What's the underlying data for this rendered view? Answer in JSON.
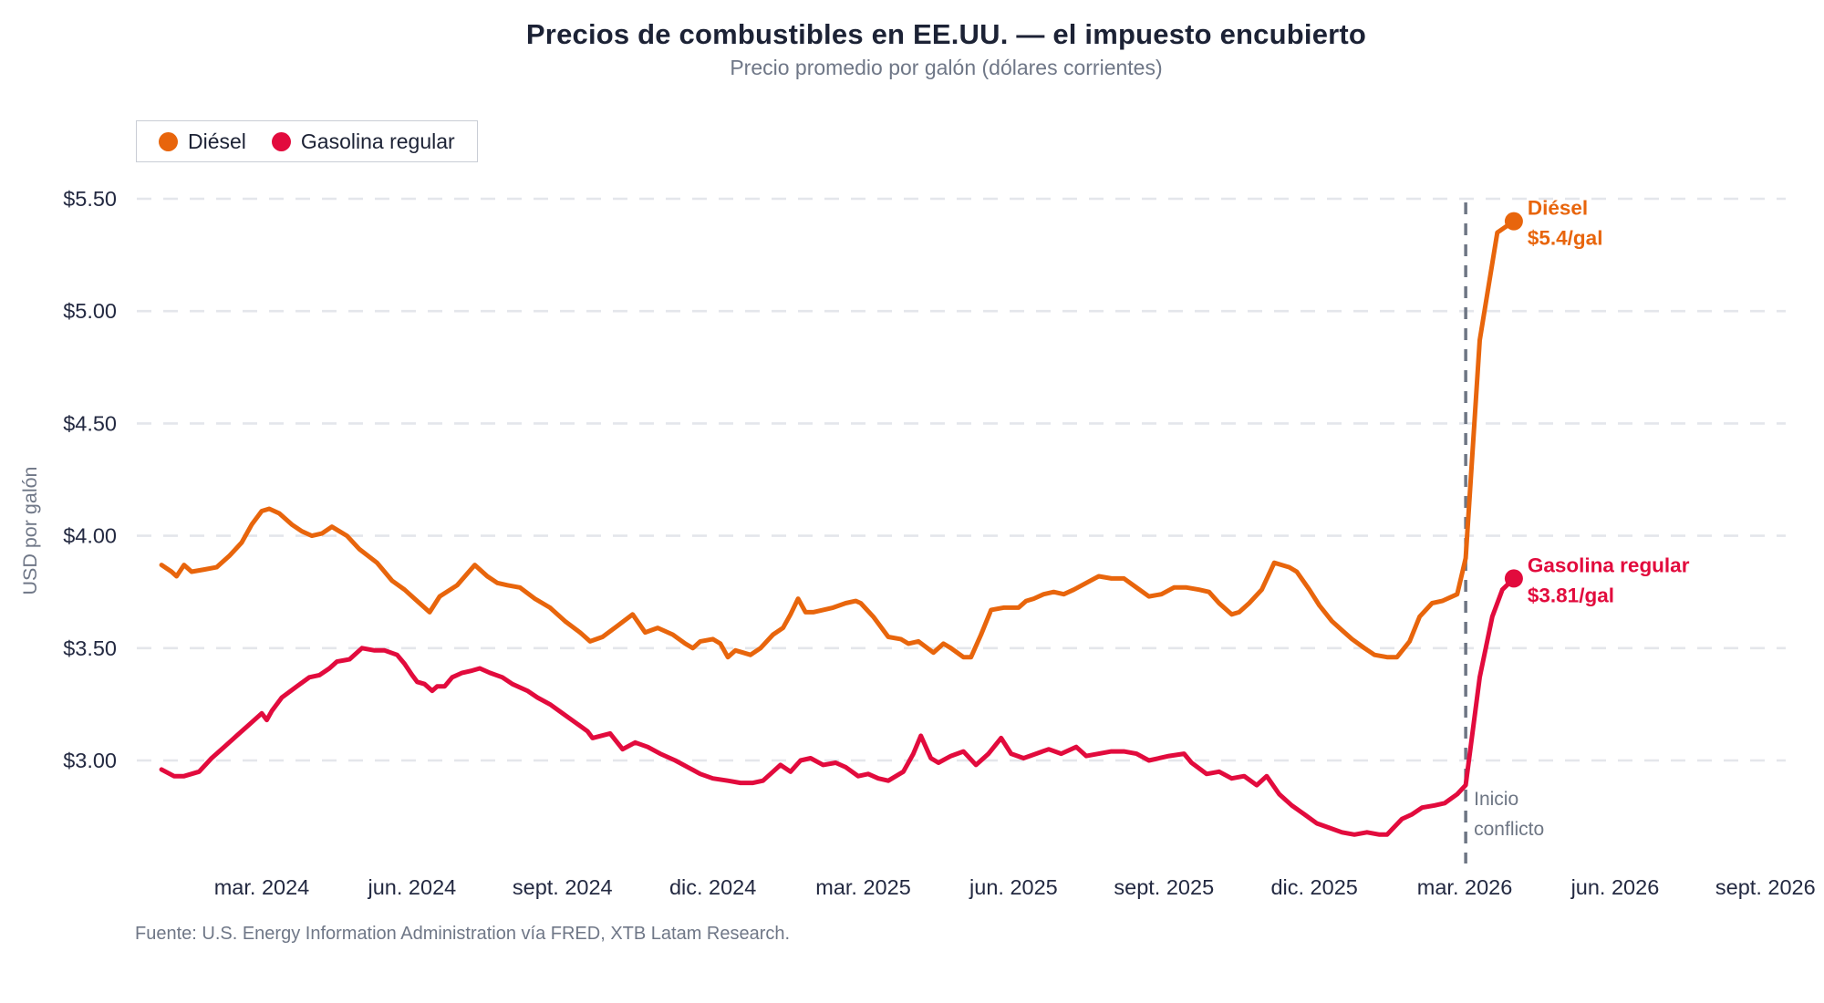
{
  "header": {
    "title": "Precios de combustibles en EE.UU. — el impuesto encubierto",
    "subtitle": "Precio promedio por galón (dólares corrientes)"
  },
  "footer": {
    "source": "Fuente: U.S. Energy Information Administration vía FRED, XTB Latam Research."
  },
  "colors": {
    "diesel": "#e8650c",
    "gasoline": "#e20b3d",
    "dark_text": "#232941",
    "muted_text": "#6f7787",
    "gridline": "#e4e6eb",
    "event_line": "#6e7684",
    "background": "#ffffff"
  },
  "chart_data": {
    "type": "line",
    "title": "Precios de combustibles en EE.UU. — el impuesto encubierto",
    "subtitle": "Precio promedio por galón (dólares corrientes)",
    "xlabel": "",
    "ylabel": "USD por galón",
    "x_unit": "months since January 2024 (m=0 is ene. 2024)",
    "xlim": [
      -1.1,
      32.45
    ],
    "ylim": [
      2.6,
      5.73
    ],
    "grid": "horizontal dashed",
    "legend_position": "top-left",
    "y_ticks": [
      {
        "v": 5.5,
        "label": "$5.50"
      },
      {
        "v": 5.0,
        "label": "$5.00"
      },
      {
        "v": 4.5,
        "label": "$4.50"
      },
      {
        "v": 4.0,
        "label": "$4.00"
      },
      {
        "v": 3.5,
        "label": "$3.50"
      },
      {
        "v": 3.0,
        "label": "$3.00"
      }
    ],
    "x_ticks": [
      {
        "m": 2,
        "label": "mar. 2024"
      },
      {
        "m": 5,
        "label": "jun. 2024"
      },
      {
        "m": 8,
        "label": "sept. 2024"
      },
      {
        "m": 11,
        "label": "dic. 2024"
      },
      {
        "m": 14,
        "label": "mar. 2025"
      },
      {
        "m": 17,
        "label": "jun. 2025"
      },
      {
        "m": 20,
        "label": "sept. 2025"
      },
      {
        "m": 23,
        "label": "dic. 2025"
      },
      {
        "m": 26,
        "label": "mar. 2026"
      },
      {
        "m": 29,
        "label": "jun. 2026"
      },
      {
        "m": 32,
        "label": "sept. 2026"
      }
    ],
    "event_line": {
      "m": 26.02,
      "style": "dashed",
      "color": "#6e7684",
      "label_lines": [
        "Inicio",
        "conflicto"
      ]
    },
    "series": [
      {
        "name": "Diésel",
        "color": "#e8650c",
        "end_value": 5.4,
        "end_annotation": {
          "lines": [
            "Diésel",
            "$5.4/gal"
          ]
        },
        "points": [
          [
            0.0,
            3.87
          ],
          [
            0.2,
            3.84
          ],
          [
            0.3,
            3.82
          ],
          [
            0.45,
            3.87
          ],
          [
            0.6,
            3.84
          ],
          [
            0.85,
            3.85
          ],
          [
            1.1,
            3.86
          ],
          [
            1.35,
            3.91
          ],
          [
            1.6,
            3.97
          ],
          [
            1.8,
            4.05
          ],
          [
            2.0,
            4.11
          ],
          [
            2.15,
            4.12
          ],
          [
            2.35,
            4.1
          ],
          [
            2.6,
            4.05
          ],
          [
            2.8,
            4.02
          ],
          [
            3.0,
            4.0
          ],
          [
            3.2,
            4.01
          ],
          [
            3.4,
            4.04
          ],
          [
            3.55,
            4.02
          ],
          [
            3.7,
            4.0
          ],
          [
            3.95,
            3.94
          ],
          [
            4.3,
            3.88
          ],
          [
            4.6,
            3.8
          ],
          [
            4.85,
            3.76
          ],
          [
            5.05,
            3.72
          ],
          [
            5.35,
            3.66
          ],
          [
            5.55,
            3.73
          ],
          [
            5.9,
            3.78
          ],
          [
            6.25,
            3.87
          ],
          [
            6.5,
            3.82
          ],
          [
            6.7,
            3.79
          ],
          [
            6.9,
            3.78
          ],
          [
            7.15,
            3.77
          ],
          [
            7.45,
            3.72
          ],
          [
            7.75,
            3.68
          ],
          [
            8.05,
            3.62
          ],
          [
            8.35,
            3.57
          ],
          [
            8.55,
            3.53
          ],
          [
            8.8,
            3.55
          ],
          [
            9.1,
            3.6
          ],
          [
            9.4,
            3.65
          ],
          [
            9.65,
            3.57
          ],
          [
            9.9,
            3.59
          ],
          [
            10.2,
            3.56
          ],
          [
            10.45,
            3.52
          ],
          [
            10.6,
            3.5
          ],
          [
            10.75,
            3.53
          ],
          [
            11.0,
            3.54
          ],
          [
            11.15,
            3.52
          ],
          [
            11.3,
            3.46
          ],
          [
            11.45,
            3.49
          ],
          [
            11.6,
            3.48
          ],
          [
            11.75,
            3.47
          ],
          [
            11.95,
            3.5
          ],
          [
            12.2,
            3.56
          ],
          [
            12.4,
            3.59
          ],
          [
            12.55,
            3.65
          ],
          [
            12.7,
            3.72
          ],
          [
            12.85,
            3.66
          ],
          [
            13.0,
            3.66
          ],
          [
            13.2,
            3.67
          ],
          [
            13.4,
            3.68
          ],
          [
            13.65,
            3.7
          ],
          [
            13.85,
            3.71
          ],
          [
            13.95,
            3.7
          ],
          [
            14.2,
            3.64
          ],
          [
            14.5,
            3.55
          ],
          [
            14.75,
            3.54
          ],
          [
            14.9,
            3.52
          ],
          [
            15.1,
            3.53
          ],
          [
            15.4,
            3.48
          ],
          [
            15.6,
            3.52
          ],
          [
            15.75,
            3.5
          ],
          [
            16.0,
            3.46
          ],
          [
            16.15,
            3.46
          ],
          [
            16.35,
            3.56
          ],
          [
            16.55,
            3.67
          ],
          [
            16.8,
            3.68
          ],
          [
            17.1,
            3.68
          ],
          [
            17.25,
            3.71
          ],
          [
            17.4,
            3.72
          ],
          [
            17.6,
            3.74
          ],
          [
            17.8,
            3.75
          ],
          [
            18.0,
            3.74
          ],
          [
            18.2,
            3.76
          ],
          [
            18.45,
            3.79
          ],
          [
            18.7,
            3.82
          ],
          [
            18.95,
            3.81
          ],
          [
            19.2,
            3.81
          ],
          [
            19.45,
            3.77
          ],
          [
            19.7,
            3.73
          ],
          [
            19.95,
            3.74
          ],
          [
            20.2,
            3.77
          ],
          [
            20.45,
            3.77
          ],
          [
            20.7,
            3.76
          ],
          [
            20.9,
            3.75
          ],
          [
            21.1,
            3.7
          ],
          [
            21.35,
            3.65
          ],
          [
            21.5,
            3.66
          ],
          [
            21.7,
            3.7
          ],
          [
            21.95,
            3.76
          ],
          [
            22.2,
            3.88
          ],
          [
            22.35,
            3.87
          ],
          [
            22.5,
            3.86
          ],
          [
            22.65,
            3.84
          ],
          [
            22.9,
            3.76
          ],
          [
            23.1,
            3.69
          ],
          [
            23.35,
            3.62
          ],
          [
            23.55,
            3.58
          ],
          [
            23.75,
            3.54
          ],
          [
            24.0,
            3.5
          ],
          [
            24.2,
            3.47
          ],
          [
            24.45,
            3.46
          ],
          [
            24.65,
            3.46
          ],
          [
            24.9,
            3.53
          ],
          [
            25.1,
            3.64
          ],
          [
            25.35,
            3.7
          ],
          [
            25.55,
            3.71
          ],
          [
            25.85,
            3.74
          ],
          [
            26.02,
            3.9
          ],
          [
            26.3,
            4.87
          ],
          [
            26.65,
            5.35
          ],
          [
            26.98,
            5.4
          ]
        ]
      },
      {
        "name": "Gasolina regular",
        "color": "#e20b3d",
        "end_value": 3.81,
        "end_annotation": {
          "lines": [
            "Gasolina regular",
            "$3.81/gal"
          ]
        },
        "points": [
          [
            0.0,
            2.96
          ],
          [
            0.25,
            2.93
          ],
          [
            0.45,
            2.93
          ],
          [
            0.75,
            2.95
          ],
          [
            1.0,
            3.01
          ],
          [
            1.25,
            3.06
          ],
          [
            1.5,
            3.11
          ],
          [
            1.75,
            3.16
          ],
          [
            2.0,
            3.21
          ],
          [
            2.1,
            3.18
          ],
          [
            2.2,
            3.22
          ],
          [
            2.4,
            3.28
          ],
          [
            2.7,
            3.33
          ],
          [
            2.95,
            3.37
          ],
          [
            3.15,
            3.38
          ],
          [
            3.35,
            3.41
          ],
          [
            3.5,
            3.44
          ],
          [
            3.75,
            3.45
          ],
          [
            4.0,
            3.5
          ],
          [
            4.25,
            3.49
          ],
          [
            4.45,
            3.49
          ],
          [
            4.7,
            3.47
          ],
          [
            4.85,
            3.43
          ],
          [
            5.0,
            3.38
          ],
          [
            5.1,
            3.35
          ],
          [
            5.25,
            3.34
          ],
          [
            5.4,
            3.31
          ],
          [
            5.5,
            3.33
          ],
          [
            5.65,
            3.33
          ],
          [
            5.8,
            3.37
          ],
          [
            6.0,
            3.39
          ],
          [
            6.2,
            3.4
          ],
          [
            6.35,
            3.41
          ],
          [
            6.55,
            3.39
          ],
          [
            6.8,
            3.37
          ],
          [
            7.0,
            3.34
          ],
          [
            7.3,
            3.31
          ],
          [
            7.5,
            3.28
          ],
          [
            7.75,
            3.25
          ],
          [
            8.0,
            3.21
          ],
          [
            8.25,
            3.17
          ],
          [
            8.5,
            3.13
          ],
          [
            8.6,
            3.1
          ],
          [
            8.95,
            3.12
          ],
          [
            9.2,
            3.05
          ],
          [
            9.45,
            3.08
          ],
          [
            9.7,
            3.06
          ],
          [
            9.95,
            3.03
          ],
          [
            10.25,
            3.0
          ],
          [
            10.5,
            2.97
          ],
          [
            10.75,
            2.94
          ],
          [
            11.0,
            2.92
          ],
          [
            11.3,
            2.91
          ],
          [
            11.55,
            2.9
          ],
          [
            11.8,
            2.9
          ],
          [
            12.0,
            2.91
          ],
          [
            12.2,
            2.95
          ],
          [
            12.35,
            2.98
          ],
          [
            12.55,
            2.95
          ],
          [
            12.75,
            3.0
          ],
          [
            12.95,
            3.01
          ],
          [
            13.2,
            2.98
          ],
          [
            13.45,
            2.99
          ],
          [
            13.65,
            2.97
          ],
          [
            13.9,
            2.93
          ],
          [
            14.1,
            2.94
          ],
          [
            14.3,
            2.92
          ],
          [
            14.5,
            2.91
          ],
          [
            14.8,
            2.95
          ],
          [
            15.0,
            3.03
          ],
          [
            15.15,
            3.11
          ],
          [
            15.35,
            3.01
          ],
          [
            15.5,
            2.99
          ],
          [
            15.75,
            3.02
          ],
          [
            16.0,
            3.04
          ],
          [
            16.25,
            2.98
          ],
          [
            16.5,
            3.03
          ],
          [
            16.75,
            3.1
          ],
          [
            16.95,
            3.03
          ],
          [
            17.2,
            3.01
          ],
          [
            17.45,
            3.03
          ],
          [
            17.7,
            3.05
          ],
          [
            17.95,
            3.03
          ],
          [
            18.25,
            3.06
          ],
          [
            18.45,
            3.02
          ],
          [
            18.7,
            3.03
          ],
          [
            18.95,
            3.04
          ],
          [
            19.2,
            3.04
          ],
          [
            19.45,
            3.03
          ],
          [
            19.7,
            3.0
          ],
          [
            20.1,
            3.02
          ],
          [
            20.4,
            3.03
          ],
          [
            20.55,
            2.99
          ],
          [
            20.85,
            2.94
          ],
          [
            21.1,
            2.95
          ],
          [
            21.35,
            2.92
          ],
          [
            21.6,
            2.93
          ],
          [
            21.85,
            2.89
          ],
          [
            22.05,
            2.93
          ],
          [
            22.3,
            2.85
          ],
          [
            22.55,
            2.8
          ],
          [
            22.8,
            2.76
          ],
          [
            23.05,
            2.72
          ],
          [
            23.3,
            2.7
          ],
          [
            23.55,
            2.68
          ],
          [
            23.8,
            2.67
          ],
          [
            24.05,
            2.68
          ],
          [
            24.3,
            2.67
          ],
          [
            24.45,
            2.67
          ],
          [
            24.75,
            2.74
          ],
          [
            24.95,
            2.76
          ],
          [
            25.15,
            2.79
          ],
          [
            25.4,
            2.8
          ],
          [
            25.6,
            2.81
          ],
          [
            25.85,
            2.85
          ],
          [
            26.02,
            2.89
          ],
          [
            26.3,
            3.37
          ],
          [
            26.55,
            3.64
          ],
          [
            26.75,
            3.76
          ],
          [
            26.98,
            3.81
          ]
        ]
      }
    ]
  }
}
